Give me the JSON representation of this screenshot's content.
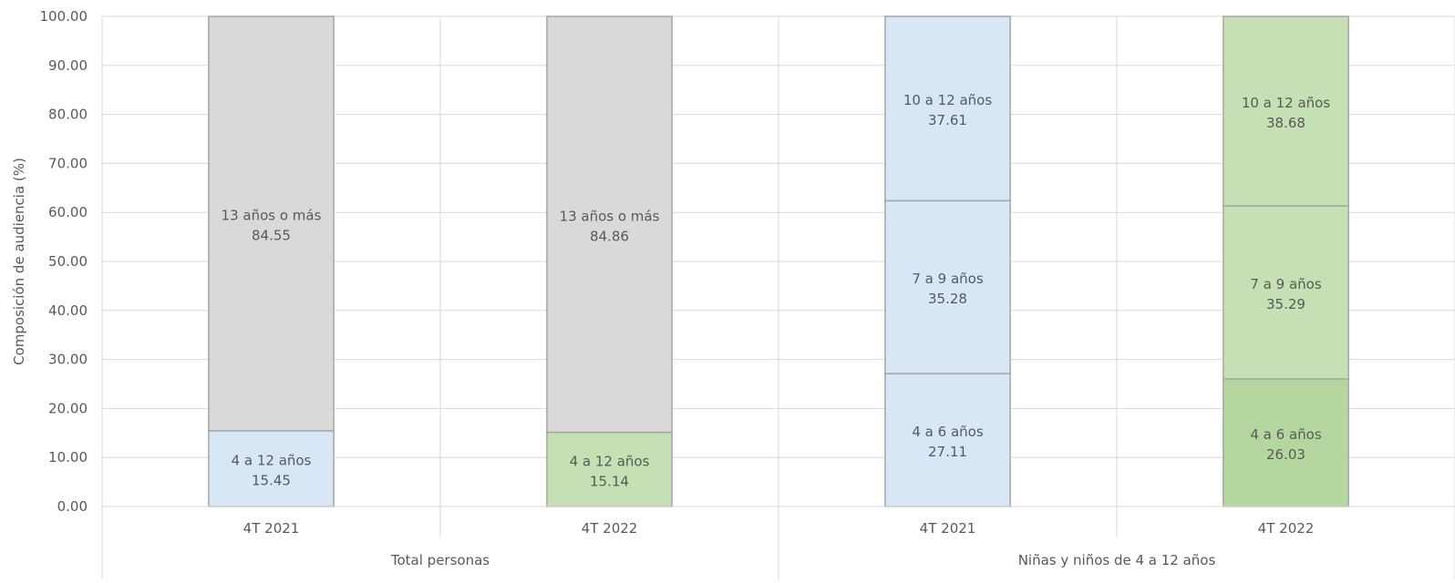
{
  "chart_data": {
    "type": "bar",
    "stacked": true,
    "ylabel": "Composición de audiencia (%)",
    "xlabel": "",
    "ylim": [
      0,
      100
    ],
    "ytick_step": 10,
    "ytick_labels": [
      "0.00",
      "10.00",
      "20.00",
      "30.00",
      "40.00",
      "50.00",
      "60.00",
      "70.00",
      "80.00",
      "90.00",
      "100.00"
    ],
    "grid": true,
    "legend": "none",
    "groups": [
      {
        "label": "Total personas",
        "bars": [
          {
            "category": "4T 2021",
            "segments": [
              {
                "label": "4 a 12 años",
                "value": 15.45,
                "value_text": "15.45",
                "color": "#d7e7f6"
              },
              {
                "label": "13 años o más",
                "value": 84.55,
                "value_text": "84.55",
                "color": "#d9d9d9"
              }
            ]
          },
          {
            "category": "4T 2022",
            "segments": [
              {
                "label": "4 a 12 años",
                "value": 15.14,
                "value_text": "15.14",
                "color": "#c5e0b4"
              },
              {
                "label": "13 años o más",
                "value": 84.86,
                "value_text": "84.86",
                "color": "#d9d9d9"
              }
            ]
          }
        ]
      },
      {
        "label": "Niñas y niños de 4 a 12 años",
        "bars": [
          {
            "category": "4T 2021",
            "segments": [
              {
                "label": "4 a 6 años",
                "value": 27.11,
                "value_text": "27.11",
                "color": "#d7e7f6"
              },
              {
                "label": "7 a 9 años",
                "value": 35.28,
                "value_text": "35.28",
                "color": "#d7e7f6"
              },
              {
                "label": "10 a 12 años",
                "value": 37.61,
                "value_text": "37.61",
                "color": "#d7e7f6"
              }
            ]
          },
          {
            "category": "4T 2022",
            "segments": [
              {
                "label": "4 a 6 años",
                "value": 26.03,
                "value_text": "26.03",
                "color": "#b4d7a0"
              },
              {
                "label": "7 a 9 años",
                "value": 35.29,
                "value_text": "35.29",
                "color": "#c5e0b4"
              },
              {
                "label": "10 a 12 años",
                "value": 38.68,
                "value_text": "38.68",
                "color": "#c5e0b4"
              }
            ]
          }
        ]
      }
    ]
  }
}
